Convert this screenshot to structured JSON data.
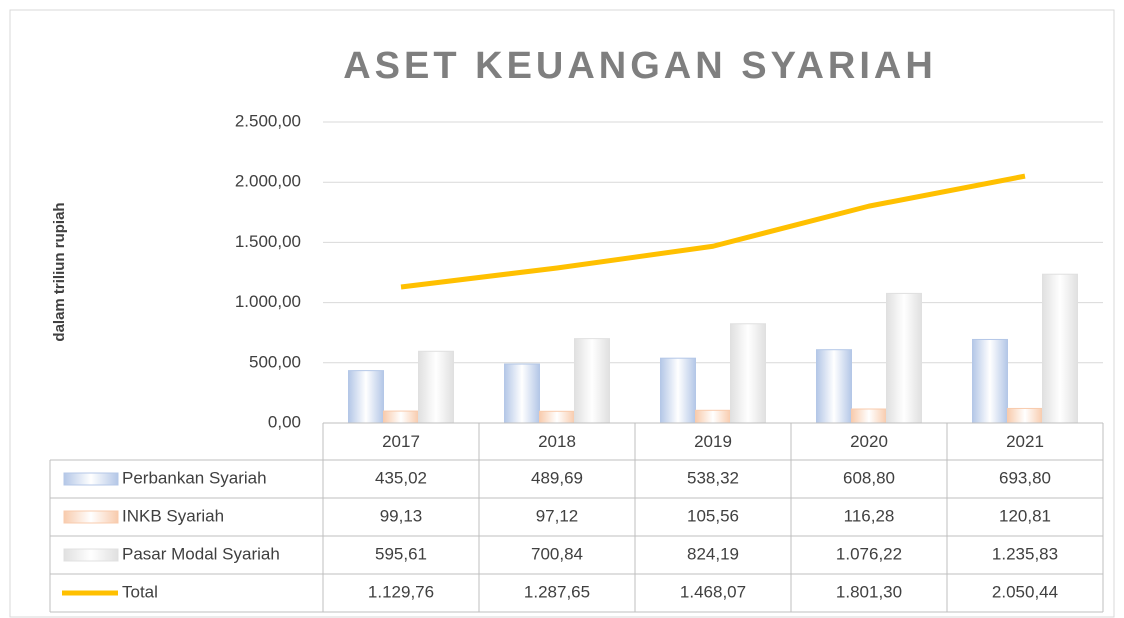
{
  "chart_data": {
    "type": "bar",
    "title": "ASET KEUANGAN SYARIAH",
    "y_label": "dalam triliun rupiah",
    "categories": [
      "2017",
      "2018",
      "2019",
      "2020",
      "2021"
    ],
    "ylim": [
      0,
      2500
    ],
    "yticks": [
      {
        "value": 0,
        "label": "0,00"
      },
      {
        "value": 500,
        "label": "500,00"
      },
      {
        "value": 1000,
        "label": "1.000,00"
      },
      {
        "value": 1500,
        "label": "1.500,00"
      },
      {
        "value": 2000,
        "label": "2.000,00"
      },
      {
        "value": 2500,
        "label": "2.500,00"
      }
    ],
    "grid": true,
    "series": [
      {
        "name": "Perbankan Syariah",
        "color": "#b4c7e7",
        "type": "bar",
        "values": [
          435.02,
          489.69,
          538.32,
          608.8,
          693.8
        ],
        "value_labels": [
          "435,02",
          "489,69",
          "538,32",
          "608,80",
          "693,80"
        ]
      },
      {
        "name": "INKB Syariah",
        "color": "#f8cbad",
        "type": "bar",
        "values": [
          99.13,
          97.12,
          105.56,
          116.28,
          120.81
        ],
        "value_labels": [
          "99,13",
          "97,12",
          "105,56",
          "116,28",
          "120,81"
        ]
      },
      {
        "name": "Pasar Modal Syariah",
        "color": "#e0e0e0",
        "type": "bar",
        "values": [
          595.61,
          700.84,
          824.19,
          1076.22,
          1235.83
        ],
        "value_labels": [
          "595,61",
          "700,84",
          "824,19",
          "1.076,22",
          "1.235,83"
        ]
      },
      {
        "name": "Total",
        "color": "#ffc000",
        "type": "line",
        "values": [
          1129.76,
          1287.65,
          1468.07,
          1801.3,
          2050.44
        ],
        "value_labels": [
          "1.129,76",
          "1.287,65",
          "1.468,07",
          "1.801,30",
          "2.050,44"
        ]
      }
    ]
  }
}
